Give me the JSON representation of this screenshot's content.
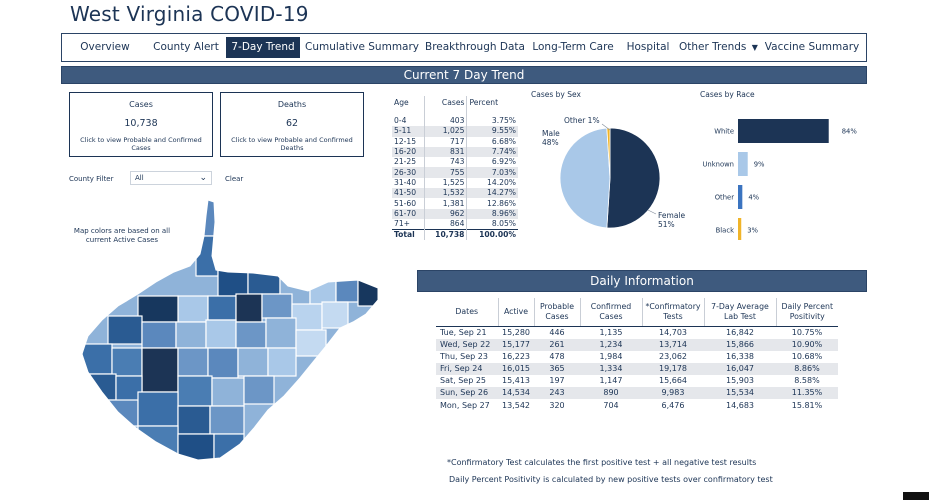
{
  "title": "West Virginia COVID-19",
  "nav": [
    {
      "label": "Overview",
      "active": false
    },
    {
      "label": "County Alert",
      "active": false
    },
    {
      "label": "7-Day Trend",
      "active": true
    },
    {
      "label": "Cumulative Summary",
      "active": false
    },
    {
      "label": "Breakthrough Data",
      "active": false
    },
    {
      "label": "Long-Term Care",
      "active": false
    },
    {
      "label": "Hospital",
      "active": false
    },
    {
      "label": "Other Trends",
      "active": false
    },
    {
      "label": "Vaccine Summary",
      "active": false
    }
  ],
  "section_title": "Current 7 Day Trend",
  "cases_card": {
    "label": "Cases",
    "value": "10,738",
    "hint": "Click to view Probable and Confirmed Cases"
  },
  "deaths_card": {
    "label": "Deaths",
    "value": "62",
    "hint": "Click to view Probable and Confirmed Deaths"
  },
  "filter": {
    "label": "County Filter",
    "value": "All",
    "clear": "Clear"
  },
  "map_note": "Map colors are based on all current Active Cases",
  "age_table": {
    "headers": [
      "Age",
      "Cases",
      "Percent"
    ],
    "rows": [
      [
        "0-4",
        "403",
        "3.75%"
      ],
      [
        "5-11",
        "1,025",
        "9.55%"
      ],
      [
        "12-15",
        "717",
        "6.68%"
      ],
      [
        "16-20",
        "831",
        "7.74%"
      ],
      [
        "21-25",
        "743",
        "6.92%"
      ],
      [
        "26-30",
        "755",
        "7.03%"
      ],
      [
        "31-40",
        "1,525",
        "14.20%"
      ],
      [
        "41-50",
        "1,532",
        "14.27%"
      ],
      [
        "51-60",
        "1,381",
        "12.86%"
      ],
      [
        "61-70",
        "962",
        "8.96%"
      ],
      [
        "71+",
        "864",
        "8.05%"
      ]
    ],
    "total": [
      "Total",
      "10,738",
      "100.00%"
    ]
  },
  "colors": {
    "navy": "#1c3455",
    "light_blue": "#a9c8e8",
    "gold": "#f0b429",
    "mid_blue": "#3b74c0",
    "bar_header": "#3e5a7e"
  },
  "chart_data": [
    {
      "type": "pie",
      "title": "Cases by Sex",
      "labels": [
        "Female",
        "Male",
        "Other"
      ],
      "values": [
        51,
        48,
        1
      ],
      "slice_labels": [
        "Female\n51%",
        "Male\n48%",
        "Other 1%"
      ],
      "colors": [
        "#1c3455",
        "#a9c8e8",
        "#f0b429"
      ]
    },
    {
      "type": "bar",
      "orientation": "horizontal",
      "title": "Cases by Race",
      "categories": [
        "White",
        "Unknown",
        "Other",
        "Black"
      ],
      "values": [
        84,
        9,
        4,
        3
      ],
      "value_labels": [
        "84%",
        "9%",
        "4%",
        "3%"
      ],
      "colors": [
        "#1c3455",
        "#a9c8e8",
        "#3b74c0",
        "#f0b429"
      ],
      "xlim": [
        0,
        100
      ]
    }
  ],
  "daily_title": "Daily Information",
  "daily_table": {
    "headers": [
      "Dates",
      "Active",
      "Probable Cases",
      "Confirmed Cases",
      "*Confirmatory Tests",
      "7-Day Average Lab Test",
      "Daily Percent Positivity"
    ],
    "rows": [
      [
        "Tue, Sep 21",
        "15,280",
        "446",
        "1,135",
        "14,703",
        "16,842",
        "10.75%"
      ],
      [
        "Wed, Sep 22",
        "15,177",
        "261",
        "1,234",
        "13,714",
        "15,866",
        "10.90%"
      ],
      [
        "Thu, Sep 23",
        "16,223",
        "478",
        "1,984",
        "23,062",
        "16,338",
        "10.68%"
      ],
      [
        "Fri, Sep 24",
        "16,015",
        "365",
        "1,334",
        "19,178",
        "16,047",
        "8.86%"
      ],
      [
        "Sat, Sep 25",
        "15,413",
        "197",
        "1,147",
        "15,664",
        "15,903",
        "8.58%"
      ],
      [
        "Sun, Sep 26",
        "14,534",
        "243",
        "890",
        "9,983",
        "15,534",
        "11.35%"
      ],
      [
        "Mon, Sep 27",
        "13,542",
        "320",
        "704",
        "6,476",
        "14,683",
        "15.81%"
      ]
    ]
  },
  "footnotes": [
    "*Confirmatory Test calculates the first positive test + all negative test results",
    "Daily Percent Positivity is calculated by new positive tests over confirmatory test"
  ]
}
